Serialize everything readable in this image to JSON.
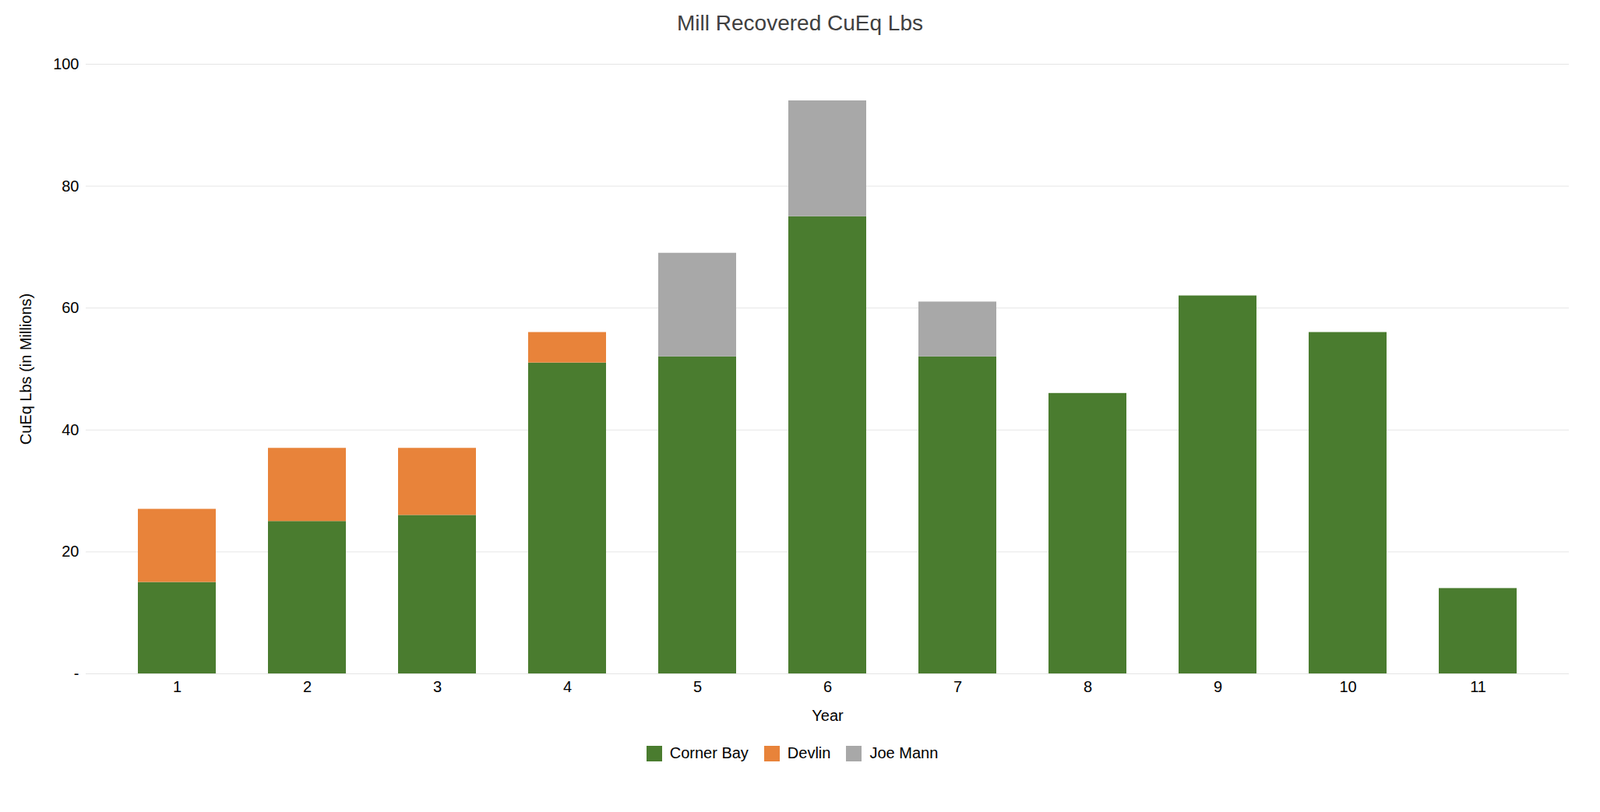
{
  "chart_data": {
    "type": "bar",
    "title": "Mill Recovered CuEq Lbs",
    "xlabel": "Year",
    "ylabel": "CuEq Lbs (in Millions)",
    "categories": [
      "1",
      "2",
      "3",
      "4",
      "5",
      "6",
      "7",
      "8",
      "9",
      "10",
      "11"
    ],
    "series": [
      {
        "name": "Corner Bay",
        "color": "#4a7c2f",
        "values": [
          15,
          25,
          26,
          51,
          52,
          75,
          52,
          46,
          62,
          56,
          14
        ]
      },
      {
        "name": "Devlin",
        "color": "#e8833a",
        "values": [
          12,
          12,
          11,
          5,
          0,
          0,
          0,
          0,
          0,
          0,
          0
        ]
      },
      {
        "name": "Joe Mann",
        "color": "#a8a8a8",
        "values": [
          0,
          0,
          0,
          0,
          17,
          19,
          9,
          0,
          0,
          0,
          0
        ]
      }
    ],
    "ylim": [
      0,
      100
    ],
    "yticks": [
      {
        "value": 0,
        "label": "-"
      },
      20,
      40,
      60,
      80,
      100
    ],
    "grid": true,
    "stacked": true,
    "legend": "bottom"
  }
}
